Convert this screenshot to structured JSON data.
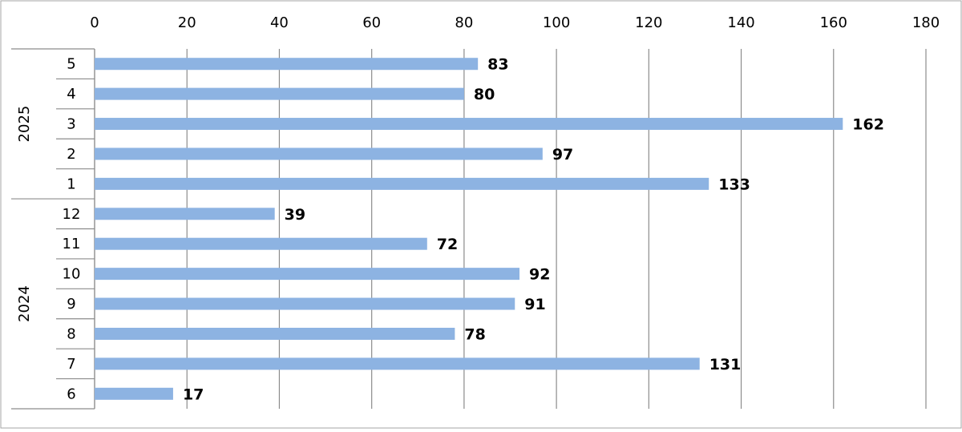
{
  "chart_data": {
    "type": "bar",
    "orientation": "horizontal",
    "title": "",
    "xlabel": "",
    "ylabel": "",
    "xlim": [
      0,
      180
    ],
    "x_ticks": [
      "0",
      "20",
      "40",
      "60",
      "80",
      "100",
      "120",
      "140",
      "160",
      "180"
    ],
    "x_axis_position": "top",
    "grid": "vertical",
    "legend": "none",
    "bar_color": "#8DB3E2",
    "groups": [
      {
        "name": "2025",
        "categories": [
          "5",
          "4",
          "3",
          "2",
          "1"
        ],
        "values": [
          83,
          80,
          162,
          97,
          133
        ]
      },
      {
        "name": "2024",
        "categories": [
          "12",
          "11",
          "10",
          "9",
          "8",
          "7",
          "6"
        ],
        "values": [
          39,
          72,
          92,
          91,
          78,
          131,
          17
        ]
      }
    ]
  }
}
